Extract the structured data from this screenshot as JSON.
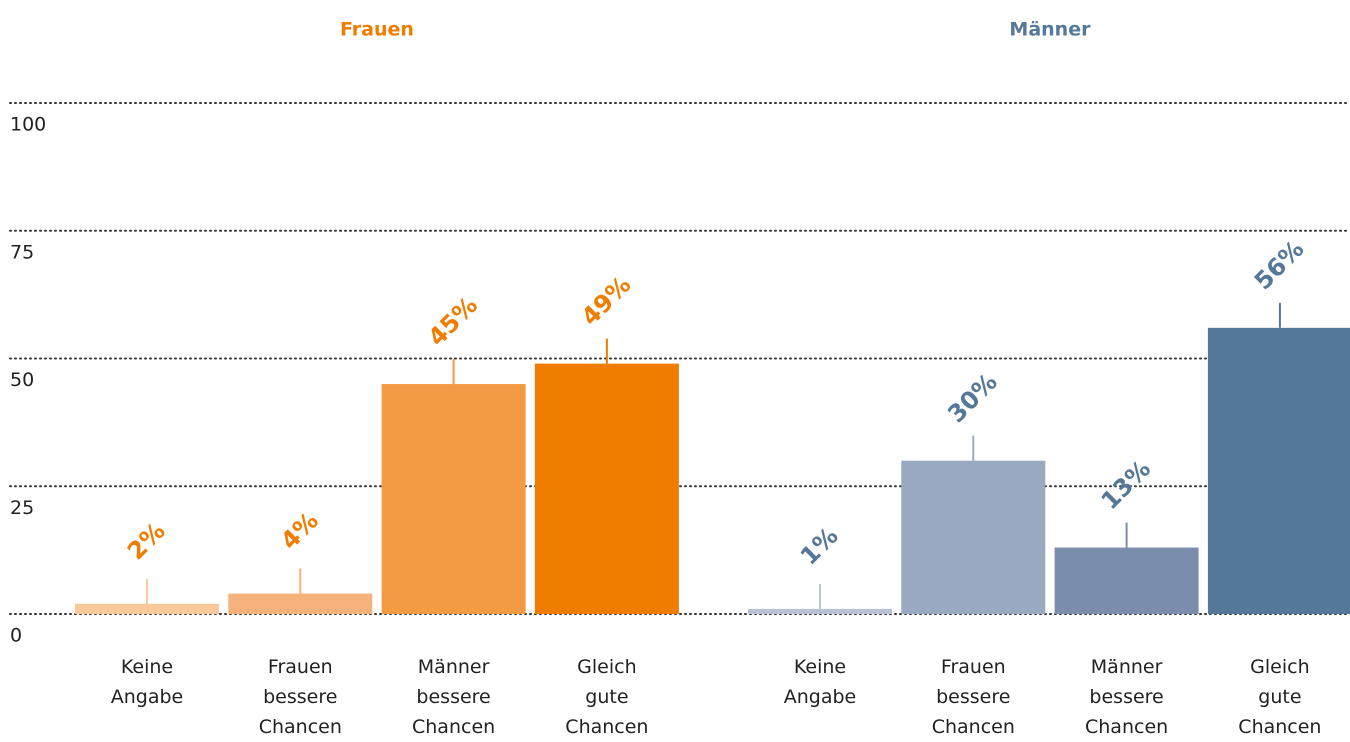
{
  "chart_data": {
    "type": "bar",
    "ylim": [
      0,
      100
    ],
    "yticks": [
      0,
      25,
      50,
      75,
      100
    ],
    "grid": true,
    "series": [
      {
        "name": "Frauen",
        "color": "#f07d00",
        "categories": [
          "Keine Angabe",
          "Frauen bessere Chancen",
          "Männer bessere Chancen",
          "Gleich gute Chancen"
        ],
        "values": [
          2,
          4,
          45,
          49
        ],
        "value_labels": [
          "2%",
          "4%",
          "45%",
          "49%"
        ],
        "colors": [
          "#f9c89b",
          "#f5b27a",
          "#f39a45",
          "#f07d00"
        ]
      },
      {
        "name": "Männer",
        "color": "#557799",
        "categories": [
          "Keine Angabe",
          "Frauen bessere Chancen",
          "Männer bessere Chancen",
          "Gleich gute Chancen"
        ],
        "values": [
          1,
          30,
          13,
          56
        ],
        "value_labels": [
          "1%",
          "30%",
          "13%",
          "56%"
        ],
        "colors": [
          "#b8c2d4",
          "#9aa9c2",
          "#7a8dad",
          "#557799"
        ]
      }
    ]
  }
}
